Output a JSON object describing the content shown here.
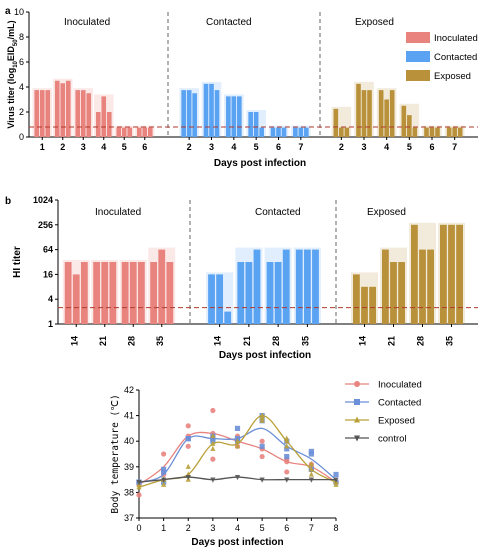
{
  "chart_data": [
    {
      "type": "bar",
      "panel_label": "a",
      "ylabel_parts": [
        "Virus titer (log",
        "10",
        "EID",
        "50",
        "/mL)"
      ],
      "xlabel": "Days post infection",
      "ylim": [
        0,
        10
      ],
      "yticks": [
        0,
        2,
        4,
        6,
        8,
        10
      ],
      "threshold": 0.8,
      "colors": {
        "Inoculated": "#e8837e",
        "Contacted": "#5aa2f2",
        "Exposed": "#b8913a",
        "threshold": "#b03a2e"
      },
      "legend": [
        "Inoculated",
        "Contacted",
        "Exposed"
      ],
      "groups": [
        {
          "name": "Inoculated",
          "days": [
            "1",
            "2",
            "3",
            "4",
            "5",
            "6"
          ],
          "values": [
            [
              3.75,
              3.75,
              3.75
            ],
            [
              4.5,
              4.3,
              4.5
            ],
            [
              3.75,
              3.75,
              3.5
            ],
            [
              2.0,
              3.25,
              2.0
            ],
            [
              0.75,
              0.75,
              0.75
            ],
            [
              0.75,
              0.75,
              0.75
            ]
          ]
        },
        {
          "name": "Contacted",
          "days": [
            "2",
            "3",
            "4",
            "5",
            "6",
            "7"
          ],
          "values": [
            [
              3.75,
              3.75,
              3.5
            ],
            [
              4.25,
              4.25,
              3.75
            ],
            [
              3.25,
              3.25,
              3.25
            ],
            [
              2.0,
              2.0,
              0.75
            ],
            [
              0.75,
              0.75,
              0.75
            ],
            [
              0.75,
              0.75,
              0.75
            ]
          ]
        },
        {
          "name": "Exposed",
          "days": [
            "2",
            "3",
            "4",
            "5",
            "6",
            "7"
          ],
          "values": [
            [
              2.25,
              0.75,
              0.75
            ],
            [
              4.25,
              3.75,
              3.75
            ],
            [
              3.75,
              3.0,
              3.75
            ],
            [
              2.5,
              1.75,
              0.75
            ],
            [
              0.75,
              0.75,
              0.75
            ],
            [
              0.75,
              0.75,
              0.75
            ]
          ]
        }
      ]
    },
    {
      "type": "bar",
      "panel_label": "b",
      "ylabel": "HI titer",
      "xlabel": "Days post infection",
      "yscale": "log2",
      "ylim": [
        1,
        1024
      ],
      "yticks": [
        "1",
        "4",
        "16",
        "64",
        "256",
        "1024"
      ],
      "threshold": 2.5,
      "colors": {
        "Inoculated": "#e8837e",
        "Contacted": "#5aa2f2",
        "Exposed": "#b8913a",
        "threshold": "#b03a2e"
      },
      "groups": [
        {
          "name": "Inoculated",
          "days": [
            "14",
            "21",
            "28",
            "35"
          ],
          "values": [
            [
              32,
              16,
              32
            ],
            [
              32,
              32,
              32
            ],
            [
              32,
              32,
              32
            ],
            [
              32,
              64,
              32
            ]
          ]
        },
        {
          "name": "Contacted",
          "days": [
            "14",
            "21",
            "28",
            "35"
          ],
          "values": [
            [
              16,
              16,
              2
            ],
            [
              32,
              32,
              64
            ],
            [
              32,
              32,
              64
            ],
            [
              64,
              64,
              64
            ]
          ]
        },
        {
          "name": "Exposed",
          "days": [
            "14",
            "21",
            "28",
            "35"
          ],
          "values": [
            [
              16,
              8,
              8
            ],
            [
              64,
              32,
              32
            ],
            [
              256,
              64,
              64
            ],
            [
              256,
              256,
              256
            ]
          ]
        }
      ]
    },
    {
      "type": "line",
      "ylabel": "Body temperature (℃)",
      "xlabel": "Days post infection",
      "xlim": [
        0,
        8
      ],
      "ylim": [
        37,
        42
      ],
      "xticks": [
        "0",
        "1",
        "2",
        "3",
        "4",
        "5",
        "6",
        "7",
        "8"
      ],
      "yticks": [
        "37",
        "38",
        "39",
        "40",
        "41",
        "42"
      ],
      "legend_position": "top-right",
      "series": [
        {
          "name": "Inoculated",
          "color": "#e8837e",
          "marker": "circle",
          "x": [
            0,
            1,
            2,
            3,
            4,
            5,
            6,
            7,
            8
          ],
          "y": [
            38.3,
            39.0,
            40.2,
            40.3,
            40.0,
            39.7,
            39.2,
            39.0,
            38.4
          ],
          "points": [
            [
              0,
              37.9
            ],
            [
              0,
              38.4
            ],
            [
              0,
              38.3
            ],
            [
              1,
              39.5
            ],
            [
              1,
              38.8
            ],
            [
              1,
              38.7
            ],
            [
              2,
              40.6
            ],
            [
              2,
              40.2
            ],
            [
              2,
              39.8
            ],
            [
              3,
              41.2
            ],
            [
              3,
              40.3
            ],
            [
              3,
              39.3
            ],
            [
              4,
              40.2
            ],
            [
              4,
              40.0
            ],
            [
              4,
              39.8
            ],
            [
              5,
              40.0
            ],
            [
              5,
              39.7
            ],
            [
              5,
              39.4
            ],
            [
              6,
              39.3
            ],
            [
              6,
              39.2
            ],
            [
              6,
              38.8
            ],
            [
              7,
              39.1
            ],
            [
              7,
              39.0
            ],
            [
              7,
              38.9
            ],
            [
              8,
              38.4
            ],
            [
              8,
              38.4
            ]
          ]
        },
        {
          "name": "Contacted",
          "color": "#6b8fd8",
          "marker": "square",
          "x": [
            0,
            1,
            2,
            3,
            4,
            5,
            6,
            7,
            8
          ],
          "y": [
            38.4,
            38.7,
            40.1,
            40.1,
            40.1,
            40.5,
            39.8,
            39.3,
            38.5
          ],
          "points": [
            [
              0,
              38.4
            ],
            [
              0,
              38.4
            ],
            [
              1,
              38.9
            ],
            [
              1,
              38.4
            ],
            [
              1,
              38.8
            ],
            [
              2,
              40.1
            ],
            [
              2,
              40.1
            ],
            [
              3,
              40.0
            ],
            [
              3,
              40.2
            ],
            [
              3,
              40.1
            ],
            [
              4,
              40.5
            ],
            [
              4,
              40.0
            ],
            [
              4,
              40.1
            ],
            [
              5,
              41.0
            ],
            [
              5,
              40.8
            ],
            [
              5,
              39.8
            ],
            [
              6,
              40.0
            ],
            [
              6,
              39.7
            ],
            [
              6,
              39.4
            ],
            [
              7,
              39.5
            ],
            [
              7,
              38.9
            ],
            [
              7,
              39.6
            ],
            [
              8,
              38.4
            ],
            [
              8,
              38.7
            ]
          ]
        },
        {
          "name": "Exposed",
          "color": "#b9a038",
          "marker": "triangle",
          "x": [
            0,
            1,
            2,
            3,
            4,
            5,
            6,
            7,
            8
          ],
          "y": [
            38.2,
            38.5,
            38.7,
            39.9,
            39.9,
            41.0,
            40.0,
            38.9,
            38.4
          ],
          "points": [
            [
              0,
              38.3
            ],
            [
              0,
              38.2
            ],
            [
              1,
              38.5
            ],
            [
              1,
              38.3
            ],
            [
              1,
              38.5
            ],
            [
              2,
              38.5
            ],
            [
              2,
              39.0
            ],
            [
              2,
              38.7
            ],
            [
              3,
              39.9
            ],
            [
              3,
              39.7
            ],
            [
              3,
              40.2
            ],
            [
              4,
              40.0
            ],
            [
              4,
              39.8
            ],
            [
              5,
              41.0
            ],
            [
              5,
              40.8
            ],
            [
              5,
              40.9
            ],
            [
              6,
              40.0
            ],
            [
              6,
              39.8
            ],
            [
              6,
              40.1
            ],
            [
              7,
              38.9
            ],
            [
              7,
              39.1
            ],
            [
              7,
              38.7
            ],
            [
              8,
              38.4
            ],
            [
              8,
              38.3
            ]
          ]
        },
        {
          "name": "control",
          "color": "#555555",
          "marker": "triangle-down",
          "x": [
            0,
            1,
            2,
            3,
            4,
            5,
            6,
            7,
            8
          ],
          "y": [
            38.4,
            38.5,
            38.6,
            38.5,
            38.6,
            38.5,
            38.5,
            38.5,
            38.5
          ],
          "points": [
            [
              0,
              38.4
            ],
            [
              1,
              38.5
            ],
            [
              2,
              38.6
            ],
            [
              3,
              38.5
            ],
            [
              4,
              38.6
            ],
            [
              5,
              38.5
            ],
            [
              6,
              38.5
            ],
            [
              7,
              38.5
            ],
            [
              8,
              38.5
            ]
          ]
        }
      ]
    }
  ]
}
